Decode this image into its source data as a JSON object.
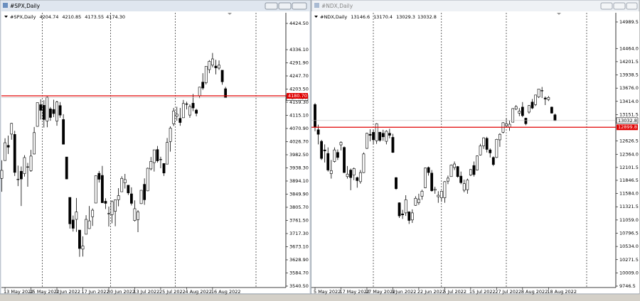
{
  "chart_data": [
    {
      "type": "candlestick",
      "title": "#SPX,Daily",
      "up_color": "#ffffff",
      "down_color": "#000000",
      "line_color": "#000000",
      "categories": [
        null,
        "13 May 2022",
        null,
        null,
        null,
        null,
        null,
        null,
        null,
        "25 May 2022",
        null,
        null,
        null,
        null,
        null,
        null,
        null,
        "7 Jun 2022",
        null,
        null,
        null,
        null,
        null,
        null,
        null,
        "17 Jun 2022",
        null,
        null,
        null,
        null,
        null,
        null,
        null,
        "30 Jun 2022",
        null,
        null,
        null,
        null,
        null,
        null,
        null,
        "13 Jul 2022",
        null,
        null,
        null,
        null,
        null,
        null,
        null,
        "25 Jul 2022",
        null,
        null,
        null,
        null,
        null,
        null,
        null,
        "4 Aug 2022",
        null,
        null,
        null,
        null,
        null,
        null,
        null,
        "16 Aug 2022",
        null,
        null,
        null,
        null
      ],
      "open": [
        3903,
        3963,
        4014,
        4052,
        4051,
        3900,
        3927,
        3919,
        3942,
        3929,
        3985,
        4078,
        4151,
        4149,
        4096,
        4137,
        4135,
        4096,
        4148,
        4101,
        3975,
        3839,
        3763,
        3765,
        3729,
        3665,
        3715,
        3734,
        3774,
        3820,
        3920,
        3913,
        3826,
        3785,
        3781,
        3792,
        3831,
        3858,
        3888,
        3880,
        3851,
        3761,
        3764,
        3818,
        3883,
        3861,
        3935,
        3956,
        4000,
        3966,
        3953,
        3951,
        4027,
        4087,
        4112,
        4105,
        4107,
        4154,
        4116,
        4156,
        4133,
        4181,
        4227,
        4225,
        4269,
        4284,
        4281,
        4274,
        4267,
        4204.74
      ],
      "high": [
        3964,
        4038,
        4047,
        4090,
        4063,
        3946,
        3943,
        3981,
        3955,
        3999,
        4076,
        4158,
        4169,
        4166,
        4178,
        4143,
        4168,
        4164,
        4160,
        4119,
        3975,
        3839,
        3778,
        3837,
        3729,
        3708,
        3779,
        3810,
        3802,
        3913,
        3928,
        3945,
        3836,
        3808,
        3829,
        3832,
        3870,
        3910,
        3918,
        3880,
        3873,
        3829,
        3796,
        3863,
        3903,
        3939,
        3975,
        3999,
        4012,
        3976,
        3954,
        4039,
        4078,
        4140,
        4144,
        4140,
        4167,
        4161,
        4152,
        4187,
        4137,
        4211,
        4257,
        4280,
        4301,
        4325,
        4302,
        4300,
        4267,
        4210.85
      ],
      "low": [
        3858,
        3963,
        3985,
        4033,
        3911,
        3877,
        3810,
        3909,
        3875,
        3925,
        3984,
        4077,
        4101,
        4074,
        4075,
        4097,
        4109,
        4080,
        4107,
        4017,
        3900,
        3734,
        3724,
        3723,
        3639,
        3640,
        3715,
        3733,
        3743,
        3820,
        3889,
        3820,
        3800,
        3741,
        3752,
        3742,
        3809,
        3858,
        3869,
        3847,
        3812,
        3758,
        3722,
        3817,
        3814,
        3860,
        3930,
        3926,
        3956,
        3937,
        3911,
        3951,
        3993,
        4079,
        4097,
        4080,
        4107,
        4135,
        4107,
        4129,
        4112,
        4173,
        4201,
        4219,
        4257,
        4277,
        4253,
        4268,
        4218,
        4173.55
      ],
      "close": [
        3930,
        4023,
        4008,
        4088,
        3923,
        3900,
        3901,
        3973,
        3941,
        3978,
        4057,
        4158,
        4132,
        4101,
        4176,
        4108,
        4121,
        4160,
        4116,
        4018,
        3901,
        3750,
        3735,
        3790,
        3667,
        3675,
        3765,
        3760,
        3796,
        3912,
        3900,
        3821,
        3819,
        3785,
        3825,
        3831,
        3845,
        3903,
        3899,
        3854,
        3819,
        3801,
        3790,
        3863,
        3831,
        3937,
        3960,
        3999,
        3962,
        3967,
        3921,
        4024,
        4072,
        4130,
        4119,
        4091,
        4155,
        4152,
        4145,
        4140,
        4122,
        4210,
        4207,
        4280,
        4297,
        4305,
        4275,
        4284,
        4228,
        4174.3
      ],
      "close_label": "4174.30",
      "level": {
        "value": 4180.7,
        "label": "4180.70",
        "color": "#e00000"
      },
      "ylim": [
        3535.7,
        4460.3
      ],
      "yticks": [
        {
          "value": 4424.5,
          "label": "4424.50"
        },
        {
          "value": 4336.1,
          "label": "4336.10"
        },
        {
          "value": 4291.9,
          "label": "4291.90"
        },
        {
          "value": 4247.7,
          "label": "4247.70"
        },
        {
          "value": 4203.5,
          "label": "4203.50"
        },
        {
          "value": 4159.3,
          "label": "4159.30"
        },
        {
          "value": 4115.1,
          "label": "4115.10"
        },
        {
          "value": 4070.9,
          "label": "4070.90"
        },
        {
          "value": 4026.7,
          "label": "4026.70"
        },
        {
          "value": 3982.5,
          "label": "3982.50"
        },
        {
          "value": 3938.3,
          "label": "3938.30"
        },
        {
          "value": 3894.1,
          "label": "3894.10"
        },
        {
          "value": 3849.9,
          "label": "3849.90"
        },
        {
          "value": 3805.7,
          "label": "3805.70"
        },
        {
          "value": 3761.5,
          "label": "3761.50"
        },
        {
          "value": 3717.3,
          "label": "3717.30"
        },
        {
          "value": 3673.1,
          "label": "3673.10"
        },
        {
          "value": 3628.9,
          "label": "3628.90"
        },
        {
          "value": 3584.7,
          "label": "3584.70"
        },
        {
          "value": 3540.5,
          "label": "3540.50"
        }
      ]
    },
    {
      "type": "candlestick",
      "title": "#NDX,Daily",
      "up_color": "#ffffff",
      "down_color": "#000000",
      "line_color": "#000000",
      "categories": [
        "5 May 2022",
        null,
        null,
        null,
        null,
        null,
        null,
        null,
        "17 May 2022",
        null,
        null,
        null,
        null,
        null,
        null,
        null,
        "27 May 2022",
        null,
        null,
        null,
        null,
        null,
        null,
        null,
        "9 Jun 2022",
        null,
        null,
        null,
        null,
        null,
        null,
        null,
        "22 Jun 2022",
        null,
        null,
        null,
        null,
        null,
        null,
        null,
        "5 Jul 2022",
        null,
        null,
        null,
        null,
        null,
        null,
        null,
        "15 Jul 2022",
        null,
        null,
        null,
        null,
        null,
        null,
        null,
        "27 Jul 2022",
        null,
        null,
        null,
        null,
        null,
        null,
        null,
        "8 Aug 2022",
        null,
        null,
        null,
        null,
        null,
        null,
        null,
        "18 Aug 2022",
        null,
        null
      ],
      "open": [
        13350,
        12850,
        12620,
        12450,
        12380,
        11980,
        12220,
        12400,
        12550,
        12500,
        11920,
        12050,
        11950,
        11900,
        11820,
        12000,
        12480,
        12760,
        12800,
        12630,
        12800,
        12780,
        12620,
        12780,
        12700,
        11900,
        11400,
        11180,
        11200,
        11220,
        11060,
        11350,
        11400,
        11530,
        11700,
        12100,
        11990,
        11650,
        11520,
        11500,
        11500,
        11830,
        11920,
        12100,
        12120,
        11930,
        11650,
        11660,
        11950,
        12140,
        12050,
        12350,
        12530,
        12680,
        12450,
        12300,
        12300,
        12650,
        12800,
        12930,
        12900,
        13000,
        13260,
        13180,
        13300,
        13080,
        13200,
        13400,
        13350,
        13500,
        13620,
        13480,
        13450,
        13300,
        13146.6
      ],
      "high": [
        13380,
        12950,
        12650,
        12560,
        12500,
        12250,
        12500,
        12460,
        12620,
        12520,
        12130,
        12080,
        12100,
        11920,
        12050,
        12400,
        12790,
        12860,
        12850,
        12980,
        12810,
        12850,
        12840,
        12870,
        12770,
        11910,
        11410,
        11260,
        11550,
        11230,
        11270,
        11530,
        11580,
        11660,
        12100,
        12120,
        12050,
        11720,
        11630,
        11640,
        11830,
        11940,
        12160,
        12220,
        12130,
        12020,
        11860,
        11880,
        12070,
        12220,
        12340,
        12570,
        12700,
        12710,
        12480,
        12320,
        12670,
        12780,
        13000,
        13080,
        13030,
        13280,
        13340,
        13280,
        13400,
        13090,
        13340,
        13460,
        13540,
        13660,
        13700,
        13510,
        13520,
        13310,
        13170.4
      ],
      "low": [
        12820,
        12560,
        12250,
        12200,
        12020,
        11880,
        12200,
        12250,
        12440,
        11990,
        11880,
        11650,
        11850,
        11700,
        11780,
        11990,
        12470,
        12620,
        12560,
        12570,
        12610,
        12630,
        12560,
        12680,
        12390,
        11660,
        11100,
        11080,
        11140,
        10980,
        11000,
        11340,
        11360,
        11460,
        11690,
        11940,
        11620,
        11580,
        11400,
        11420,
        11400,
        11770,
        11920,
        12050,
        11900,
        11770,
        11610,
        11580,
        11930,
        11920,
        12040,
        12340,
        12470,
        12400,
        12300,
        12130,
        12290,
        12510,
        12780,
        12900,
        12830,
        13000,
        13240,
        13120,
        13100,
        12940,
        13170,
        13260,
        13320,
        13480,
        13480,
        13340,
        13420,
        13170,
        13029.3
      ],
      "close": [
        12900,
        12760,
        12280,
        12430,
        12050,
        12040,
        12450,
        12300,
        12600,
        12000,
        11970,
        11900,
        12080,
        11840,
        12000,
        12370,
        12780,
        12740,
        12650,
        12970,
        12640,
        12710,
        12820,
        12740,
        12400,
        11680,
        11140,
        11160,
        11460,
        11050,
        11200,
        11490,
        11470,
        11630,
        12090,
        12000,
        11640,
        11670,
        11550,
        11630,
        11820,
        11890,
        12150,
        12170,
        11920,
        11800,
        11780,
        11850,
        12060,
        11960,
        12330,
        12530,
        12690,
        12460,
        12390,
        12160,
        12660,
        12760,
        12990,
        12970,
        12960,
        13270,
        13310,
        13220,
        13130,
        12970,
        13330,
        13280,
        13540,
        13660,
        13630,
        13460,
        13490,
        13180,
        13032.8
      ],
      "level": {
        "value": 12899.8,
        "color": "#e00000"
      },
      "ylim": [
        9718.4,
        15172.2
      ],
      "yticks": [
        14989.5,
        {
          "value": 14464,
          "label": "14464.0"
        },
        14201.5,
        13938.5,
        {
          "value": 13676,
          "label": "13676.0"
        },
        {
          "value": 13414,
          "label": "13414.0"
        },
        13151.5,
        12626.5,
        {
          "value": 12364,
          "label": "12364.0"
        },
        12101.5,
        11846.5,
        {
          "value": 11584,
          "label": "11584.0"
        },
        11321.5,
        {
          "value": 11059,
          "label": "11059.0"
        },
        10796.5,
        {
          "value": 10534,
          "label": "10534.0"
        },
        10271.5,
        {
          "value": 10009,
          "label": "10009.0"
        },
        9746.5
      ]
    }
  ]
}
